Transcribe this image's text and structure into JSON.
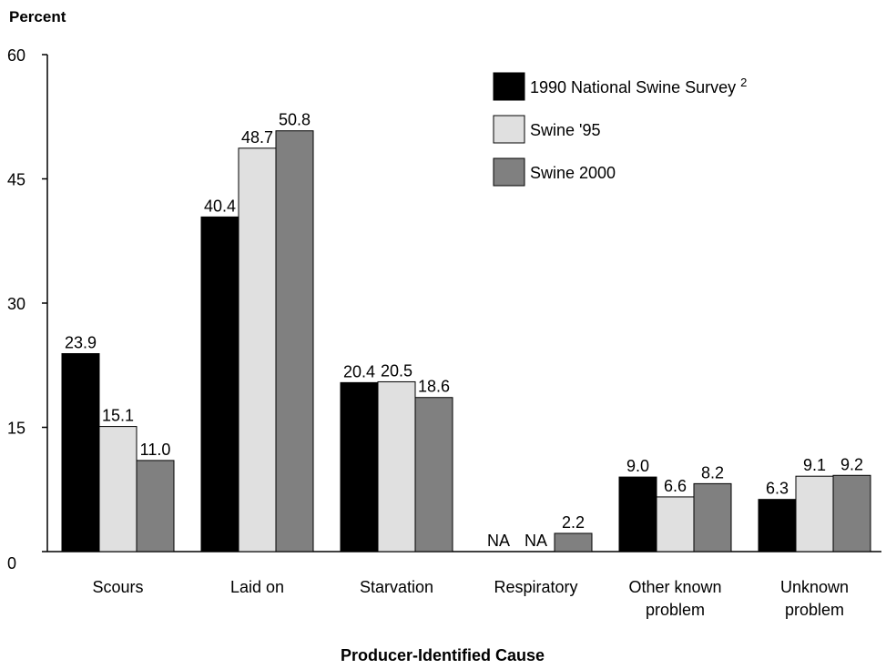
{
  "chart_data": {
    "type": "bar",
    "ylabel": "Percent",
    "xlabel": "Producer-Identified Cause",
    "ylim": [
      0,
      60
    ],
    "yticks": [
      "0",
      "15",
      "30",
      "45",
      "60"
    ],
    "categories": [
      [
        "Scours"
      ],
      [
        "Laid on"
      ],
      [
        "Starvation"
      ],
      [
        "Respiratory"
      ],
      [
        "Other known",
        "problem"
      ],
      [
        "Unknown",
        "problem"
      ]
    ],
    "series": [
      {
        "name": "1990 National Swine Survey",
        "name_sup": "2",
        "color": "#000000",
        "values": [
          23.9,
          40.4,
          20.4,
          null,
          9.0,
          6.3
        ],
        "labels": [
          "23.9",
          "40.4",
          "20.4",
          "NA",
          "9.0",
          "6.3"
        ]
      },
      {
        "name": "Swine '95",
        "color": "#e0e0e0",
        "values": [
          15.1,
          48.7,
          20.5,
          null,
          6.6,
          9.1
        ],
        "labels": [
          "15.1",
          "48.7",
          "20.5",
          "NA",
          "6.6",
          "9.1"
        ]
      },
      {
        "name": "Swine 2000",
        "color": "#808080",
        "values": [
          11.0,
          50.8,
          18.6,
          2.2,
          8.2,
          9.2
        ],
        "labels": [
          "11.0",
          "50.8",
          "18.6",
          "2.2",
          "8.2",
          "9.2"
        ]
      }
    ],
    "legend_position": "top-right",
    "grid": false
  }
}
